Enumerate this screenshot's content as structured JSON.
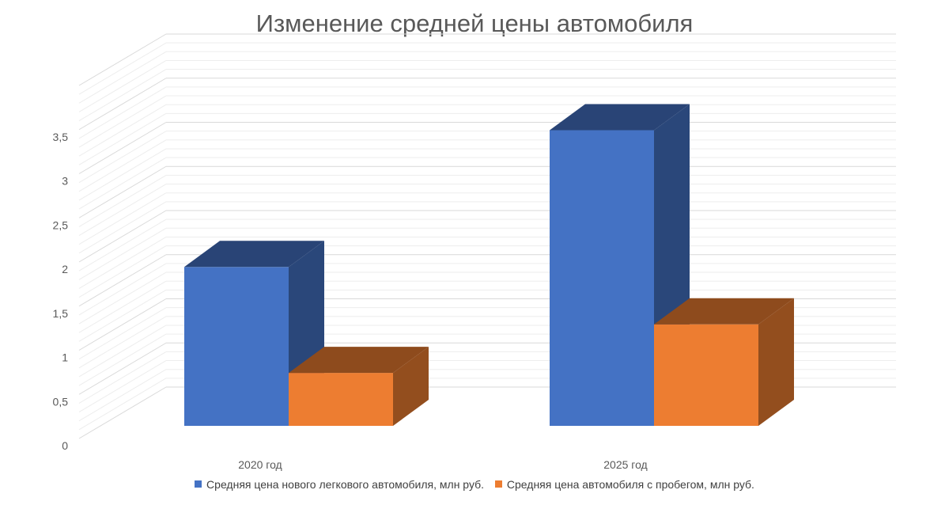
{
  "chart_data": {
    "type": "bar",
    "title": "Изменение средней цены автомобиля",
    "categories": [
      "2020 год",
      "2025 год"
    ],
    "series": [
      {
        "name": "Средняя цена нового легкового автомобиля, млн руб.",
        "values": [
          1.8,
          3.35
        ],
        "color": "#4472C4"
      },
      {
        "name": "Средняя цена автомобиля с пробегом, млн руб.",
        "values": [
          0.6,
          1.15
        ],
        "color": "#ED7D31"
      }
    ],
    "yticks": [
      "0",
      "0,5",
      "1",
      "1,5",
      "2",
      "2,5",
      "3",
      "3,5"
    ],
    "ylim": [
      0,
      4
    ],
    "grid": true,
    "legend": "bottom",
    "style": "3d-column"
  }
}
